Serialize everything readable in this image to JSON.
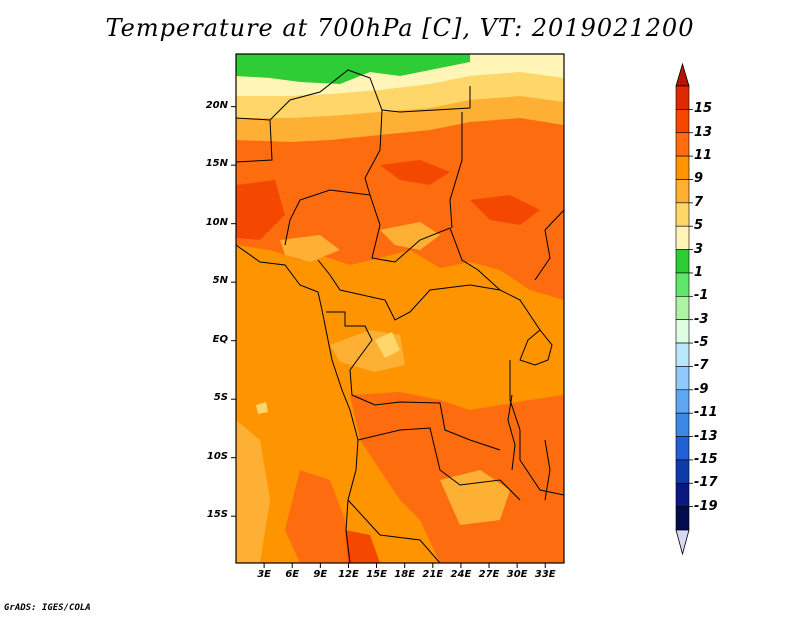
{
  "title": "Temperature at 700hPa [C], VT: 2019021200",
  "credit": "GrADS: IGES/COLA",
  "map": {
    "region": "Central Africa",
    "variable": "Temperature at 700hPa",
    "units": "C",
    "valid_time": "2019021200",
    "lat_range": [
      -19,
      24.5
    ],
    "lon_range": [
      0,
      35
    ],
    "lat_ticks": [
      {
        "value": 20,
        "label": "20N"
      },
      {
        "value": 15,
        "label": "15N"
      },
      {
        "value": 10,
        "label": "10N"
      },
      {
        "value": 5,
        "label": "5N"
      },
      {
        "value": 0,
        "label": "EQ"
      },
      {
        "value": -5,
        "label": "5S"
      },
      {
        "value": -10,
        "label": "10S"
      },
      {
        "value": -15,
        "label": "15S"
      }
    ],
    "lon_ticks": [
      {
        "value": 3,
        "label": "3E"
      },
      {
        "value": 6,
        "label": "6E"
      },
      {
        "value": 9,
        "label": "9E"
      },
      {
        "value": 12,
        "label": "12E"
      },
      {
        "value": 15,
        "label": "15E"
      },
      {
        "value": 18,
        "label": "18E"
      },
      {
        "value": 21,
        "label": "21E"
      },
      {
        "value": 24,
        "label": "24E"
      },
      {
        "value": 27,
        "label": "27E"
      },
      {
        "value": 30,
        "label": "30E"
      },
      {
        "value": 33,
        "label": "33E"
      }
    ]
  },
  "colorbar": {
    "labels": [
      "15",
      "13",
      "11",
      "9",
      "7",
      "5",
      "3",
      "1",
      "-1",
      "-3",
      "-5",
      "-7",
      "-9",
      "-11",
      "-13",
      "-15",
      "-17",
      "-19"
    ],
    "colors": [
      "#dc2b00",
      "#f44800",
      "#fd6d0f",
      "#fd9400",
      "#fdb033",
      "#fed66a",
      "#fef5b6",
      "#2fcd35",
      "#5ee769",
      "#aef3a4",
      "#e1fde1",
      "#bbe7fd",
      "#90c9fb",
      "#5ea6f5",
      "#3a8ae5",
      "#2160d2",
      "#0f3ba8",
      "#0a1880",
      "#040c50"
    ],
    "top_arrow_color": "#b51400",
    "bottom_arrow_color": "#d8d8f6"
  }
}
